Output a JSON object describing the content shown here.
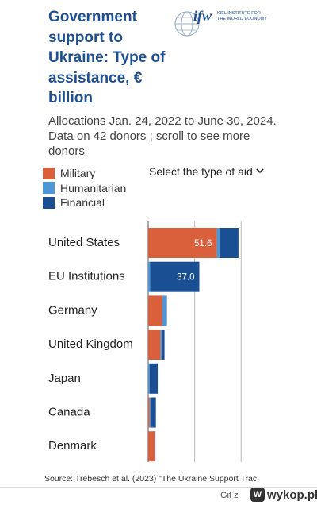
{
  "header": {
    "title": "Government support to Ukraine:  Type of assistance, € billion",
    "subtitle": "Allocations Jan. 24, 2022 to June 30, 2024. Data on 42 donors ; scroll to see more donors",
    "logo_mark": "ifw",
    "logo_line1": "KIEL INSTITUTE FOR",
    "logo_line2": "THE WORLD ECONOMY"
  },
  "legend": {
    "items": [
      {
        "label": "Military",
        "color": "#d9603b"
      },
      {
        "label": "Humanitarian",
        "color": "#4f96d6"
      },
      {
        "label": "Financial",
        "color": "#1b4f93"
      }
    ]
  },
  "selector": {
    "label": "Select the type of aid",
    "icon": "chevron-down-icon"
  },
  "chart_data": {
    "type": "bar",
    "orientation": "horizontal",
    "stacked": true,
    "categories": [
      "United States",
      "EU Institutions",
      "Germany",
      "United Kingdom",
      "Japan",
      "Canada",
      "Denmark"
    ],
    "series": [
      {
        "name": "Military",
        "color": "#d9603b",
        "values": [
          51.6,
          0,
          10.6,
          9.3,
          0,
          1.1,
          5.0
        ]
      },
      {
        "name": "Humanitarian",
        "color": "#4f96d6",
        "values": [
          2.0,
          1.5,
          3.0,
          1.0,
          1.0,
          0.5,
          0.5
        ]
      },
      {
        "name": "Financial",
        "color": "#1b4f93",
        "values": [
          14.4,
          37.0,
          0.4,
          2.0,
          6.2,
          4.2,
          0
        ]
      }
    ],
    "data_labels": [
      {
        "category": "United States",
        "series": "Military",
        "text": "51.6"
      },
      {
        "category": "EU Institutions",
        "series": "Financial",
        "text": "37.0"
      }
    ],
    "xlim": [
      0,
      100
    ],
    "gridlines": [
      0,
      35,
      70
    ],
    "grid": true
  },
  "footer": {
    "source": "Source: Trebesch et al. (2023) \"The Ukraine Support Trac",
    "git": "Git  z",
    "brand": "wykop.pl",
    "brand_badge": "W"
  }
}
